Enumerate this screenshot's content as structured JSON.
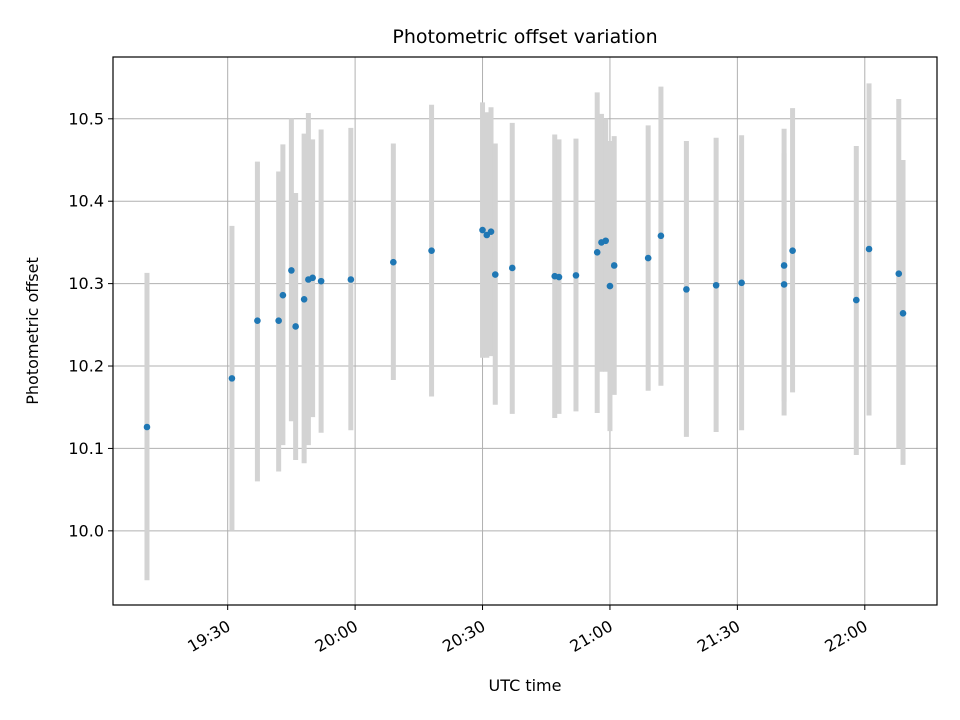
{
  "chart_data": {
    "type": "scatter",
    "title": "Photometric offset variation",
    "xlabel": "UTC time",
    "ylabel": "Photometric offset",
    "xlim": [
      "19:03",
      "22:17"
    ],
    "ylim": [
      9.91,
      10.575
    ],
    "grid": true,
    "x_ticks": [
      "19:30",
      "20:00",
      "20:30",
      "21:00",
      "21:30",
      "22:00"
    ],
    "y_ticks": [
      "10.0",
      "10.1",
      "10.2",
      "10.3",
      "10.4",
      "10.5"
    ],
    "error_bar_color": "#d3d3d3",
    "point_color": "#1f77b4",
    "series": [
      {
        "points": [
          {
            "time": "19:11",
            "value": 10.126,
            "err_low": 9.94,
            "err_high": 10.313
          },
          {
            "time": "19:31",
            "value": 10.185,
            "err_low": 10.0,
            "err_high": 10.37
          },
          {
            "time": "19:37",
            "value": 10.255,
            "err_low": 10.06,
            "err_high": 10.448
          },
          {
            "time": "19:42",
            "value": 10.255,
            "err_low": 10.072,
            "err_high": 10.436
          },
          {
            "time": "19:43",
            "value": 10.286,
            "err_low": 10.104,
            "err_high": 10.469
          },
          {
            "time": "19:45",
            "value": 10.316,
            "err_low": 10.133,
            "err_high": 10.5
          },
          {
            "time": "19:46",
            "value": 10.248,
            "err_low": 10.086,
            "err_high": 10.41
          },
          {
            "time": "19:48",
            "value": 10.281,
            "err_low": 10.082,
            "err_high": 10.482
          },
          {
            "time": "19:49",
            "value": 10.305,
            "err_low": 10.104,
            "err_high": 10.507
          },
          {
            "time": "19:50",
            "value": 10.307,
            "err_low": 10.138,
            "err_high": 10.475
          },
          {
            "time": "19:52",
            "value": 10.303,
            "err_low": 10.119,
            "err_high": 10.487
          },
          {
            "time": "19:59",
            "value": 10.305,
            "err_low": 10.122,
            "err_high": 10.489
          },
          {
            "time": "20:09",
            "value": 10.326,
            "err_low": 10.183,
            "err_high": 10.47
          },
          {
            "time": "20:18",
            "value": 10.34,
            "err_low": 10.163,
            "err_high": 10.517
          },
          {
            "time": "20:30",
            "value": 10.365,
            "err_low": 10.21,
            "err_high": 10.52
          },
          {
            "time": "20:31",
            "value": 10.359,
            "err_low": 10.21,
            "err_high": 10.508
          },
          {
            "time": "20:32",
            "value": 10.363,
            "err_low": 10.212,
            "err_high": 10.514
          },
          {
            "time": "20:33",
            "value": 10.311,
            "err_low": 10.153,
            "err_high": 10.47
          },
          {
            "time": "20:37",
            "value": 10.319,
            "err_low": 10.142,
            "err_high": 10.495
          },
          {
            "time": "20:47",
            "value": 10.309,
            "err_low": 10.137,
            "err_high": 10.481
          },
          {
            "time": "20:48",
            "value": 10.308,
            "err_low": 10.142,
            "err_high": 10.475
          },
          {
            "time": "20:52",
            "value": 10.31,
            "err_low": 10.145,
            "err_high": 10.476
          },
          {
            "time": "20:57",
            "value": 10.338,
            "err_low": 10.143,
            "err_high": 10.532
          },
          {
            "time": "20:58",
            "value": 10.35,
            "err_low": 10.193,
            "err_high": 10.506
          },
          {
            "time": "20:59",
            "value": 10.352,
            "err_low": 10.193,
            "err_high": 10.5
          },
          {
            "time": "21:00",
            "value": 10.297,
            "err_low": 10.121,
            "err_high": 10.473
          },
          {
            "time": "21:01",
            "value": 10.322,
            "err_low": 10.165,
            "err_high": 10.479
          },
          {
            "time": "21:09",
            "value": 10.331,
            "err_low": 10.17,
            "err_high": 10.492
          },
          {
            "time": "21:12",
            "value": 10.358,
            "err_low": 10.176,
            "err_high": 10.539
          },
          {
            "time": "21:18",
            "value": 10.293,
            "err_low": 10.114,
            "err_high": 10.473
          },
          {
            "time": "21:25",
            "value": 10.298,
            "err_low": 10.12,
            "err_high": 10.477
          },
          {
            "time": "21:31",
            "value": 10.301,
            "err_low": 10.122,
            "err_high": 10.48
          },
          {
            "time": "21:41",
            "value": 10.322,
            "err_low": 10.157,
            "err_high": 10.488
          },
          {
            "time": "21:41",
            "value": 10.299,
            "err_low": 10.14,
            "err_high": 10.458
          },
          {
            "time": "21:43",
            "value": 10.34,
            "err_low": 10.168,
            "err_high": 10.513
          },
          {
            "time": "21:58",
            "value": 10.28,
            "err_low": 10.092,
            "err_high": 10.467
          },
          {
            "time": "22:01",
            "value": 10.342,
            "err_low": 10.14,
            "err_high": 10.543
          },
          {
            "time": "22:08",
            "value": 10.312,
            "err_low": 10.1,
            "err_high": 10.524
          },
          {
            "time": "22:09",
            "value": 10.264,
            "err_low": 10.08,
            "err_high": 10.45
          }
        ]
      }
    ]
  }
}
